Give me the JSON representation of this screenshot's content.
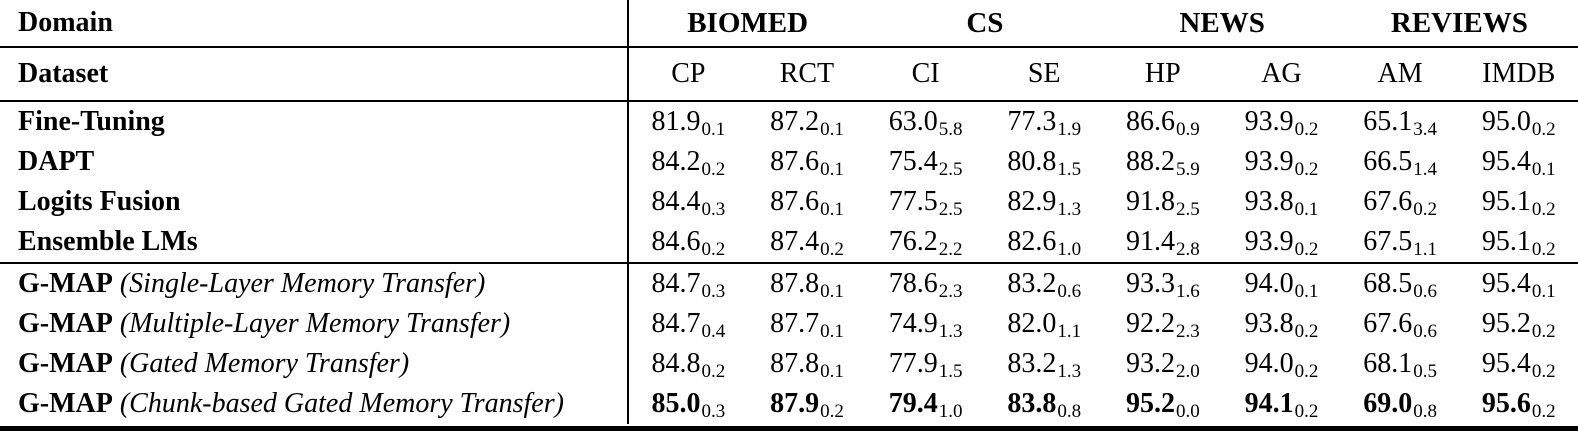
{
  "table": {
    "domain_label": "Domain",
    "dataset_label": "Dataset",
    "domain_groups": [
      "BIOMED",
      "CS",
      "NEWS",
      "REVIEWS"
    ],
    "dataset_headers": [
      "CP",
      "RCT",
      "CI",
      "SE",
      "HP",
      "AG",
      "AM",
      "IMDB"
    ],
    "baseline_rows": [
      {
        "label": "Fine-Tuning",
        "values": [
          {
            "v": "81.9",
            "s": "0.1"
          },
          {
            "v": "87.2",
            "s": "0.1"
          },
          {
            "v": "63.0",
            "s": "5.8"
          },
          {
            "v": "77.3",
            "s": "1.9"
          },
          {
            "v": "86.6",
            "s": "0.9"
          },
          {
            "v": "93.9",
            "s": "0.2"
          },
          {
            "v": "65.1",
            "s": "3.4"
          },
          {
            "v": "95.0",
            "s": "0.2"
          }
        ]
      },
      {
        "label": "DAPT",
        "values": [
          {
            "v": "84.2",
            "s": "0.2"
          },
          {
            "v": "87.6",
            "s": "0.1"
          },
          {
            "v": "75.4",
            "s": "2.5"
          },
          {
            "v": "80.8",
            "s": "1.5"
          },
          {
            "v": "88.2",
            "s": "5.9"
          },
          {
            "v": "93.9",
            "s": "0.2"
          },
          {
            "v": "66.5",
            "s": "1.4"
          },
          {
            "v": "95.4",
            "s": "0.1"
          }
        ]
      },
      {
        "label": "Logits Fusion",
        "values": [
          {
            "v": "84.4",
            "s": "0.3"
          },
          {
            "v": "87.6",
            "s": "0.1"
          },
          {
            "v": "77.5",
            "s": "2.5"
          },
          {
            "v": "82.9",
            "s": "1.3"
          },
          {
            "v": "91.8",
            "s": "2.5"
          },
          {
            "v": "93.8",
            "s": "0.1"
          },
          {
            "v": "67.6",
            "s": "0.2"
          },
          {
            "v": "95.1",
            "s": "0.2"
          }
        ]
      },
      {
        "label": "Ensemble LMs",
        "values": [
          {
            "v": "84.6",
            "s": "0.2"
          },
          {
            "v": "87.4",
            "s": "0.2"
          },
          {
            "v": "76.2",
            "s": "2.2"
          },
          {
            "v": "82.6",
            "s": "1.0"
          },
          {
            "v": "91.4",
            "s": "2.8"
          },
          {
            "v": "93.9",
            "s": "0.2"
          },
          {
            "v": "67.5",
            "s": "1.1"
          },
          {
            "v": "95.1",
            "s": "0.2"
          }
        ]
      }
    ],
    "gmap_rows": [
      {
        "name": "G-MAP",
        "variant": "(Single-Layer Memory Transfer)",
        "bold": false,
        "values": [
          {
            "v": "84.7",
            "s": "0.3"
          },
          {
            "v": "87.8",
            "s": "0.1"
          },
          {
            "v": "78.6",
            "s": "2.3"
          },
          {
            "v": "83.2",
            "s": "0.6"
          },
          {
            "v": "93.3",
            "s": "1.6"
          },
          {
            "v": "94.0",
            "s": "0.1"
          },
          {
            "v": "68.5",
            "s": "0.6"
          },
          {
            "v": "95.4",
            "s": "0.1"
          }
        ]
      },
      {
        "name": "G-MAP",
        "variant": "(Multiple-Layer Memory Transfer)",
        "bold": false,
        "values": [
          {
            "v": "84.7",
            "s": "0.4"
          },
          {
            "v": "87.7",
            "s": "0.1"
          },
          {
            "v": "74.9",
            "s": "1.3"
          },
          {
            "v": "82.0",
            "s": "1.1"
          },
          {
            "v": "92.2",
            "s": "2.3"
          },
          {
            "v": "93.8",
            "s": "0.2"
          },
          {
            "v": "67.6",
            "s": "0.6"
          },
          {
            "v": "95.2",
            "s": "0.2"
          }
        ]
      },
      {
        "name": "G-MAP",
        "variant": "(Gated Memory Transfer)",
        "bold": false,
        "values": [
          {
            "v": "84.8",
            "s": "0.2"
          },
          {
            "v": "87.8",
            "s": "0.1"
          },
          {
            "v": "77.9",
            "s": "1.5"
          },
          {
            "v": "83.2",
            "s": "1.3"
          },
          {
            "v": "93.2",
            "s": "2.0"
          },
          {
            "v": "94.0",
            "s": "0.2"
          },
          {
            "v": "68.1",
            "s": "0.5"
          },
          {
            "v": "95.4",
            "s": "0.2"
          }
        ]
      },
      {
        "name": "G-MAP",
        "variant": "(Chunk-based Gated Memory Transfer)",
        "bold": true,
        "values": [
          {
            "v": "85.0",
            "s": "0.3"
          },
          {
            "v": "87.9",
            "s": "0.2"
          },
          {
            "v": "79.4",
            "s": "1.0"
          },
          {
            "v": "83.8",
            "s": "0.8"
          },
          {
            "v": "95.2",
            "s": "0.0"
          },
          {
            "v": "94.1",
            "s": "0.2"
          },
          {
            "v": "69.0",
            "s": "0.8"
          },
          {
            "v": "95.6",
            "s": "0.2"
          }
        ]
      }
    ]
  }
}
